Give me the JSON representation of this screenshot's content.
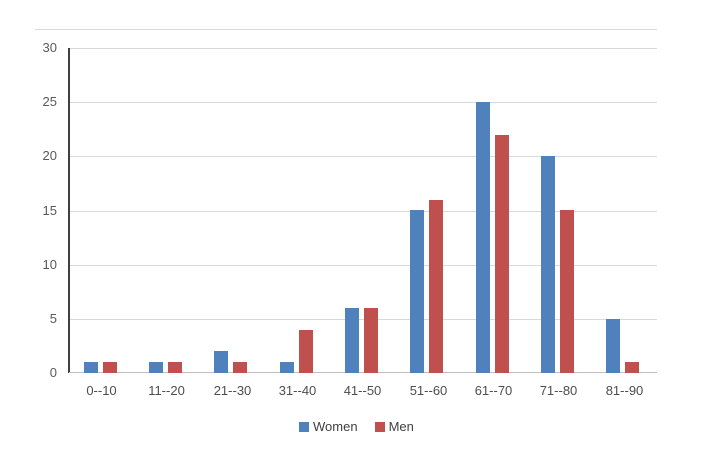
{
  "chart_data": {
    "type": "bar",
    "title": "",
    "xlabel": "",
    "ylabel": "",
    "categories": [
      "0--10",
      "11--20",
      "21--30",
      "31--40",
      "41--50",
      "51--60",
      "61--70",
      "71--80",
      "81--90"
    ],
    "series": [
      {
        "name": "Women",
        "color": "#4F81BD",
        "values": [
          1,
          1,
          2,
          1,
          6,
          15,
          25,
          20,
          5
        ]
      },
      {
        "name": "Men",
        "color": "#C0504D",
        "values": [
          1,
          1,
          1,
          4,
          6,
          16,
          22,
          15,
          1
        ]
      }
    ],
    "ylim": [
      0,
      30
    ],
    "ytick_step": 5,
    "ytick_labels": [
      "0",
      "5",
      "10",
      "15",
      "20",
      "25",
      "30"
    ],
    "grid": true,
    "legend_position": "bottom"
  },
  "colors": {
    "gridline": "#d9d9d9",
    "top_border": "#d9d9d9",
    "y_axis_line": "#404040",
    "x_axis_line": "#bfbfbf",
    "tick_text": "#595959",
    "category_text": "#4d4d4d",
    "legend_text": "#404040",
    "background": "#ffffff"
  }
}
